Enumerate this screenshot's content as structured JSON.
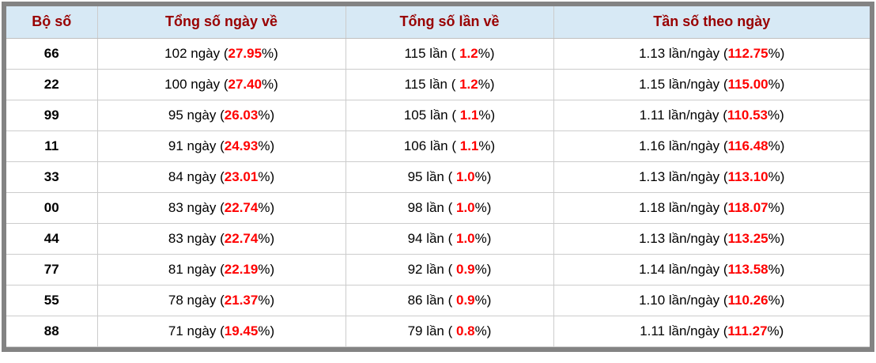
{
  "table": {
    "columns": [
      {
        "label": "Bộ số"
      },
      {
        "label": "Tổng số ngày về"
      },
      {
        "label": "Tổng số lần về"
      },
      {
        "label": "Tần số theo ngày"
      }
    ],
    "rows": [
      {
        "pair": "66",
        "days_prefix": "102 ngày (",
        "days_value": "27.95",
        "days_suffix": "%)",
        "times_prefix": "115 lần ( ",
        "times_value": "1.2",
        "times_suffix": "%)",
        "freq_prefix": "1.13 lần/ngày (",
        "freq_value": "112.75",
        "freq_suffix": "%)"
      },
      {
        "pair": "22",
        "days_prefix": "100 ngày (",
        "days_value": "27.40",
        "days_suffix": "%)",
        "times_prefix": "115 lần ( ",
        "times_value": "1.2",
        "times_suffix": "%)",
        "freq_prefix": "1.15 lần/ngày (",
        "freq_value": "115.00",
        "freq_suffix": "%)"
      },
      {
        "pair": "99",
        "days_prefix": "95 ngày (",
        "days_value": "26.03",
        "days_suffix": "%)",
        "times_prefix": "105 lần ( ",
        "times_value": "1.1",
        "times_suffix": "%)",
        "freq_prefix": "1.11 lần/ngày (",
        "freq_value": "110.53",
        "freq_suffix": "%)"
      },
      {
        "pair": "11",
        "days_prefix": "91 ngày (",
        "days_value": "24.93",
        "days_suffix": "%)",
        "times_prefix": "106 lần ( ",
        "times_value": "1.1",
        "times_suffix": "%)",
        "freq_prefix": "1.16 lần/ngày (",
        "freq_value": "116.48",
        "freq_suffix": "%)"
      },
      {
        "pair": "33",
        "days_prefix": "84 ngày (",
        "days_value": "23.01",
        "days_suffix": "%)",
        "times_prefix": "95 lần ( ",
        "times_value": "1.0",
        "times_suffix": "%)",
        "freq_prefix": "1.13 lần/ngày (",
        "freq_value": "113.10",
        "freq_suffix": "%)"
      },
      {
        "pair": "00",
        "days_prefix": "83 ngày (",
        "days_value": "22.74",
        "days_suffix": "%)",
        "times_prefix": "98 lần ( ",
        "times_value": "1.0",
        "times_suffix": "%)",
        "freq_prefix": "1.18 lần/ngày (",
        "freq_value": "118.07",
        "freq_suffix": "%)"
      },
      {
        "pair": "44",
        "days_prefix": "83 ngày (",
        "days_value": "22.74",
        "days_suffix": "%)",
        "times_prefix": "94 lần ( ",
        "times_value": "1.0",
        "times_suffix": "%)",
        "freq_prefix": "1.13 lần/ngày (",
        "freq_value": "113.25",
        "freq_suffix": "%)"
      },
      {
        "pair": "77",
        "days_prefix": "81 ngày (",
        "days_value": "22.19",
        "days_suffix": "%)",
        "times_prefix": "92 lần ( ",
        "times_value": "0.9",
        "times_suffix": "%)",
        "freq_prefix": "1.14 lần/ngày (",
        "freq_value": "113.58",
        "freq_suffix": "%)"
      },
      {
        "pair": "55",
        "days_prefix": "78 ngày (",
        "days_value": "21.37",
        "days_suffix": "%)",
        "times_prefix": "86 lần ( ",
        "times_value": "0.9",
        "times_suffix": "%)",
        "freq_prefix": "1.10 lần/ngày (",
        "freq_value": "110.26",
        "freq_suffix": "%)"
      },
      {
        "pair": "88",
        "days_prefix": "71 ngày (",
        "days_value": "19.45",
        "days_suffix": "%)",
        "times_prefix": "79 lần ( ",
        "times_value": "0.8",
        "times_suffix": "%)",
        "freq_prefix": "1.11 lần/ngày (",
        "freq_value": "111.27",
        "freq_suffix": "%)"
      }
    ]
  },
  "colors": {
    "header_bg": "#d7e9f5",
    "header_text": "#990000",
    "highlight": "#ff0000",
    "frame_border": "#838383",
    "grid_line": "#cccccc"
  }
}
